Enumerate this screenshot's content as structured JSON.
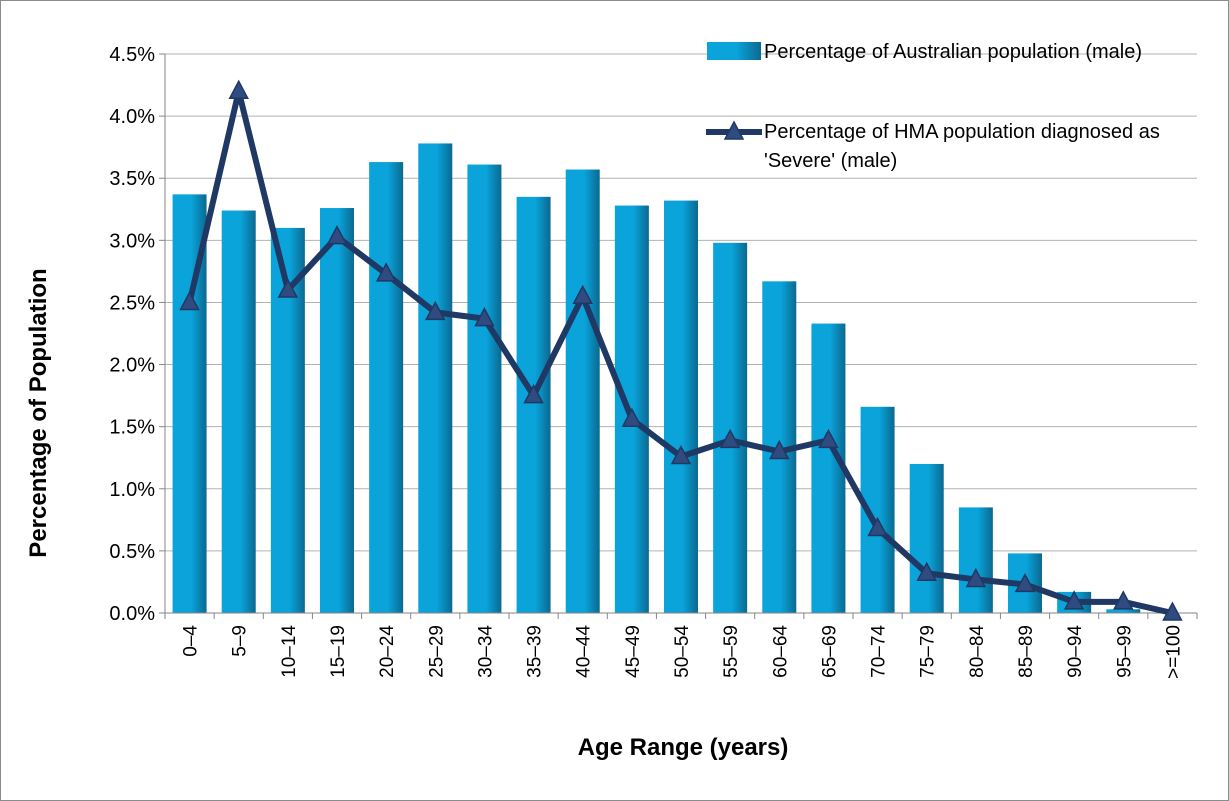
{
  "chart_data": {
    "type": "bar_line",
    "x_label": "Age Range (years)",
    "y_label": "Percentage of Population",
    "categories": [
      "0–4",
      "5–9",
      "10–14",
      "15–19",
      "20–24",
      "25–29",
      "30–34",
      "35–39",
      "40–44",
      "45–49",
      "50–54",
      "55–59",
      "60–64",
      "65–69",
      "70–74",
      "75–79",
      "80–84",
      "85–89",
      "90–94",
      "95–99",
      ">=100"
    ],
    "series": [
      {
        "name": "Percentage of Australian population (male)",
        "type": "bar",
        "color": "#0aa3da",
        "values": [
          3.37,
          3.24,
          3.1,
          3.26,
          3.63,
          3.78,
          3.61,
          3.35,
          3.57,
          3.28,
          3.32,
          2.98,
          2.67,
          2.33,
          1.66,
          1.2,
          0.85,
          0.48,
          0.17,
          0.03,
          0
        ]
      },
      {
        "name": "Percentage of HMA population diagnosed as 'Severe' (male)",
        "type": "line",
        "color": "#1f3864",
        "values": [
          2.5,
          4.2,
          2.6,
          3.03,
          2.73,
          2.42,
          2.37,
          1.75,
          2.55,
          1.56,
          1.26,
          1.39,
          1.3,
          1.39,
          0.68,
          0.32,
          0.27,
          0.23,
          0.09,
          0.09,
          0
        ]
      }
    ],
    "ylim": [
      0,
      4.5
    ],
    "yticks": [
      {
        "value": 0,
        "label": "0.0%"
      },
      {
        "value": 0.5,
        "label": "0.5%"
      },
      {
        "value": 1,
        "label": "1.0%"
      },
      {
        "value": 1.5,
        "label": "1.5%"
      },
      {
        "value": 2,
        "label": "2.0%"
      },
      {
        "value": 2.5,
        "label": "2.5%"
      },
      {
        "value": 3,
        "label": "3.0%"
      },
      {
        "value": 3.5,
        "label": "3.5%"
      },
      {
        "value": 4,
        "label": "4.0%"
      },
      {
        "value": 4.5,
        "label": "4.5%"
      }
    ],
    "grid": true,
    "legend": "top-right"
  }
}
